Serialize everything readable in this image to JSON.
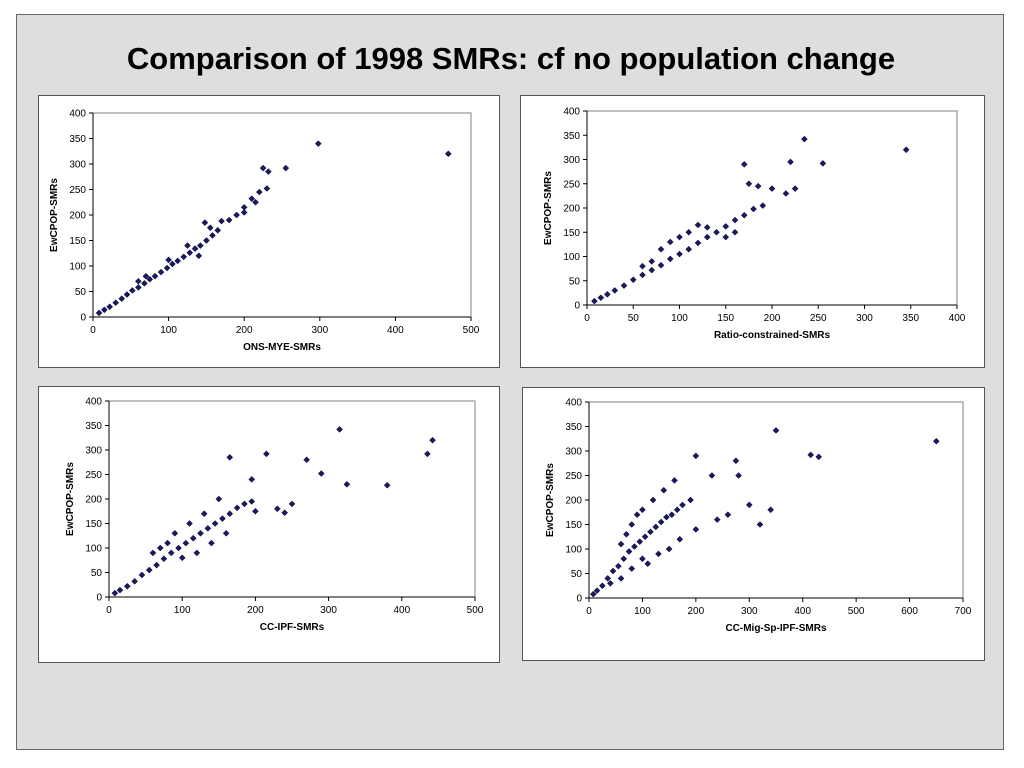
{
  "slide": {
    "title": "Comparison of 1998 SMRs: cf no population change"
  },
  "chart_data": [
    {
      "type": "scatter",
      "xlabel": "ONS-MYE-SMRs",
      "ylabel": "EwCPOP-SMRs",
      "xlim": [
        0,
        500
      ],
      "ylim": [
        0,
        400
      ],
      "xticks": [
        0,
        100,
        200,
        300,
        400,
        500
      ],
      "yticks": [
        0,
        50,
        100,
        150,
        200,
        250,
        300,
        350,
        400
      ],
      "grid": false,
      "legend": "none",
      "marker_color": "#1a1a5e",
      "points": [
        [
          8,
          8
        ],
        [
          15,
          14
        ],
        [
          22,
          20
        ],
        [
          30,
          28
        ],
        [
          38,
          36
        ],
        [
          45,
          44
        ],
        [
          52,
          52
        ],
        [
          60,
          58
        ],
        [
          68,
          66
        ],
        [
          75,
          74
        ],
        [
          82,
          80
        ],
        [
          90,
          88
        ],
        [
          98,
          96
        ],
        [
          105,
          104
        ],
        [
          112,
          110
        ],
        [
          120,
          118
        ],
        [
          128,
          126
        ],
        [
          135,
          134
        ],
        [
          142,
          140
        ],
        [
          150,
          150
        ],
        [
          158,
          160
        ],
        [
          165,
          170
        ],
        [
          180,
          190
        ],
        [
          190,
          200
        ],
        [
          200,
          215
        ],
        [
          210,
          232
        ],
        [
          220,
          245
        ],
        [
          230,
          252
        ],
        [
          225,
          292
        ],
        [
          232,
          285
        ],
        [
          255,
          292
        ],
        [
          298,
          340
        ],
        [
          470,
          320
        ],
        [
          148,
          185
        ],
        [
          155,
          175
        ],
        [
          170,
          188
        ],
        [
          125,
          140
        ],
        [
          140,
          120
        ],
        [
          100,
          112
        ],
        [
          70,
          80
        ],
        [
          60,
          70
        ],
        [
          200,
          205
        ],
        [
          215,
          225
        ]
      ]
    },
    {
      "type": "scatter",
      "xlabel": "Ratio-constrained-SMRs",
      "ylabel": "EwCPOP-SMRs",
      "xlim": [
        0,
        400
      ],
      "ylim": [
        0,
        400
      ],
      "xticks": [
        0,
        50,
        100,
        150,
        200,
        250,
        300,
        350,
        400
      ],
      "yticks": [
        0,
        50,
        100,
        150,
        200,
        250,
        300,
        350,
        400
      ],
      "grid": false,
      "legend": "none",
      "marker_color": "#1a1a5e",
      "points": [
        [
          8,
          8
        ],
        [
          15,
          15
        ],
        [
          22,
          22
        ],
        [
          30,
          30
        ],
        [
          40,
          40
        ],
        [
          50,
          52
        ],
        [
          60,
          62
        ],
        [
          70,
          72
        ],
        [
          80,
          82
        ],
        [
          90,
          95
        ],
        [
          100,
          105
        ],
        [
          110,
          115
        ],
        [
          120,
          128
        ],
        [
          130,
          140
        ],
        [
          140,
          150
        ],
        [
          150,
          162
        ],
        [
          160,
          175
        ],
        [
          170,
          185
        ],
        [
          180,
          198
        ],
        [
          190,
          205
        ],
        [
          170,
          290
        ],
        [
          200,
          240
        ],
        [
          215,
          230
        ],
        [
          220,
          295
        ],
        [
          225,
          240
        ],
        [
          235,
          342
        ],
        [
          255,
          292
        ],
        [
          345,
          320
        ],
        [
          175,
          250
        ],
        [
          185,
          245
        ],
        [
          100,
          140
        ],
        [
          110,
          150
        ],
        [
          120,
          165
        ],
        [
          130,
          160
        ],
        [
          90,
          130
        ],
        [
          80,
          115
        ],
        [
          70,
          90
        ],
        [
          60,
          80
        ],
        [
          150,
          140
        ],
        [
          160,
          150
        ]
      ]
    },
    {
      "type": "scatter",
      "xlabel": "CC-IPF-SMRs",
      "ylabel": "EwCPOP-SMRs",
      "xlim": [
        0,
        500
      ],
      "ylim": [
        0,
        400
      ],
      "xticks": [
        0,
        100,
        200,
        300,
        400,
        500
      ],
      "yticks": [
        0,
        50,
        100,
        150,
        200,
        250,
        300,
        350,
        400
      ],
      "grid": false,
      "legend": "none",
      "marker_color": "#1a1a5e",
      "points": [
        [
          8,
          8
        ],
        [
          15,
          14
        ],
        [
          25,
          22
        ],
        [
          35,
          32
        ],
        [
          45,
          45
        ],
        [
          55,
          55
        ],
        [
          65,
          65
        ],
        [
          75,
          78
        ],
        [
          85,
          90
        ],
        [
          95,
          100
        ],
        [
          105,
          110
        ],
        [
          115,
          120
        ],
        [
          125,
          130
        ],
        [
          135,
          140
        ],
        [
          145,
          150
        ],
        [
          155,
          160
        ],
        [
          165,
          170
        ],
        [
          175,
          182
        ],
        [
          185,
          190
        ],
        [
          195,
          195
        ],
        [
          165,
          285
        ],
        [
          195,
          240
        ],
        [
          215,
          292
        ],
        [
          240,
          172
        ],
        [
          250,
          190
        ],
        [
          270,
          280
        ],
        [
          290,
          252
        ],
        [
          315,
          342
        ],
        [
          325,
          230
        ],
        [
          380,
          228
        ],
        [
          435,
          292
        ],
        [
          442,
          320
        ],
        [
          100,
          80
        ],
        [
          120,
          90
        ],
        [
          140,
          110
        ],
        [
          160,
          130
        ],
        [
          80,
          110
        ],
        [
          90,
          130
        ],
        [
          110,
          150
        ],
        [
          130,
          170
        ],
        [
          150,
          200
        ],
        [
          60,
          90
        ],
        [
          70,
          100
        ],
        [
          200,
          175
        ],
        [
          230,
          180
        ]
      ]
    },
    {
      "type": "scatter",
      "xlabel": "CC-Mig-Sp-IPF-SMRs",
      "ylabel": "EwCPOP-SMRs",
      "xlim": [
        0,
        700
      ],
      "ylim": [
        0,
        400
      ],
      "xticks": [
        0,
        100,
        200,
        300,
        400,
        500,
        600,
        700
      ],
      "yticks": [
        0,
        50,
        100,
        150,
        200,
        250,
        300,
        350,
        400
      ],
      "grid": false,
      "legend": "none",
      "marker_color": "#1a1a5e",
      "points": [
        [
          8,
          8
        ],
        [
          15,
          15
        ],
        [
          25,
          25
        ],
        [
          35,
          40
        ],
        [
          45,
          55
        ],
        [
          55,
          65
        ],
        [
          65,
          80
        ],
        [
          75,
          95
        ],
        [
          85,
          105
        ],
        [
          95,
          115
        ],
        [
          105,
          125
        ],
        [
          115,
          135
        ],
        [
          125,
          145
        ],
        [
          135,
          155
        ],
        [
          145,
          165
        ],
        [
          155,
          170
        ],
        [
          165,
          180
        ],
        [
          175,
          190
        ],
        [
          190,
          200
        ],
        [
          60,
          110
        ],
        [
          80,
          150
        ],
        [
          100,
          180
        ],
        [
          120,
          200
        ],
        [
          140,
          220
        ],
        [
          160,
          240
        ],
        [
          200,
          290
        ],
        [
          230,
          250
        ],
        [
          275,
          280
        ],
        [
          280,
          250
        ],
        [
          300,
          190
        ],
        [
          340,
          180
        ],
        [
          350,
          342
        ],
        [
          415,
          292
        ],
        [
          430,
          288
        ],
        [
          650,
          320
        ],
        [
          110,
          70
        ],
        [
          130,
          90
        ],
        [
          150,
          100
        ],
        [
          170,
          120
        ],
        [
          200,
          140
        ],
        [
          240,
          160
        ],
        [
          260,
          170
        ],
        [
          320,
          150
        ],
        [
          60,
          40
        ],
        [
          80,
          60
        ],
        [
          100,
          80
        ],
        [
          40,
          30
        ],
        [
          70,
          130
        ],
        [
          90,
          170
        ]
      ]
    }
  ]
}
